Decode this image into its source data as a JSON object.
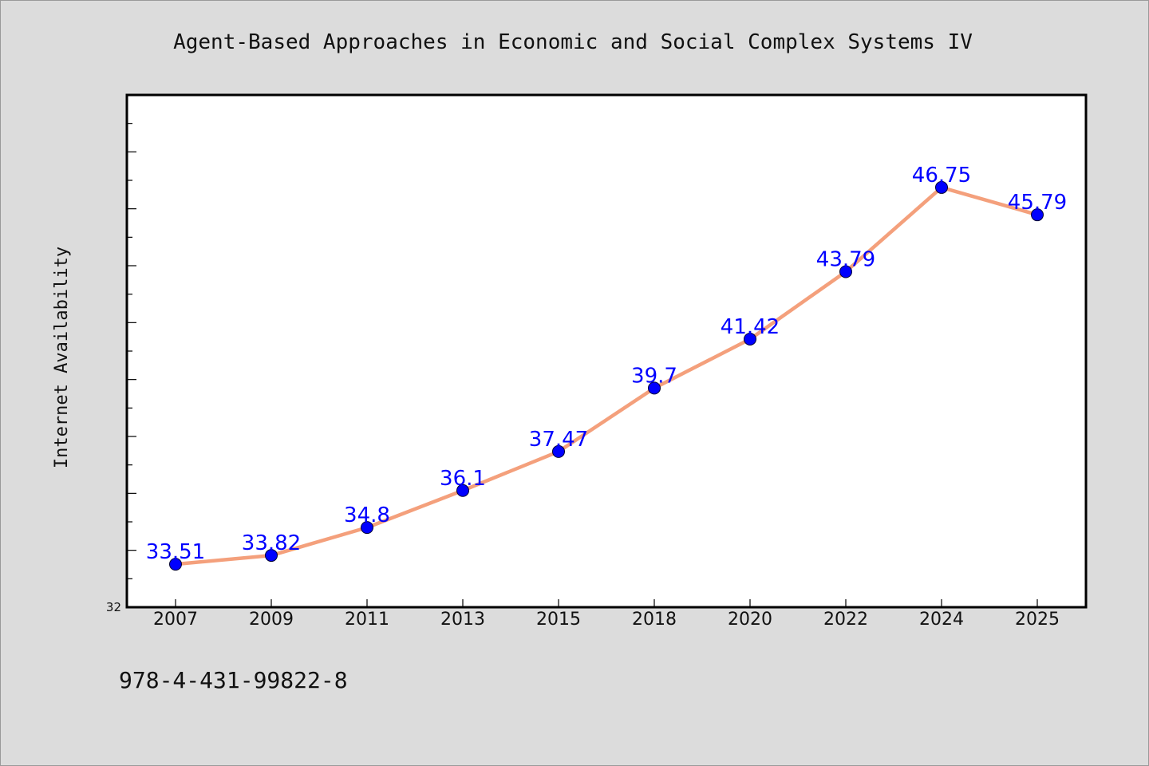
{
  "chart_data": {
    "type": "line",
    "title": "Agent-Based Approaches in Economic and Social Complex Systems IV",
    "xlabel": "",
    "ylabel": "Internet Availability",
    "categories": [
      "2007",
      "2009",
      "2011",
      "2013",
      "2015",
      "2018",
      "2020",
      "2022",
      "2024",
      "2025"
    ],
    "series": [
      {
        "values": [
          33.51,
          33.82,
          34.8,
          36.1,
          37.47,
          39.7,
          41.42,
          43.79,
          46.75,
          45.79
        ],
        "labels": [
          "33.51",
          "33.82",
          "34.8",
          "36.1",
          "37.47",
          "39.7",
          "41.42",
          "43.79",
          "46.75",
          "45.79"
        ]
      }
    ],
    "ylim": [
      32,
      50
    ],
    "y_tick_label_shown": "32",
    "grid": false,
    "legend": "none",
    "colors": {
      "line": "#f4a07c",
      "marker": "#0000ff",
      "data_label": "#0000ff",
      "plot_background": "#ffffff",
      "page_background": "#dcdcdc"
    }
  },
  "footer": {
    "isbn": "978-4-431-99822-8"
  }
}
